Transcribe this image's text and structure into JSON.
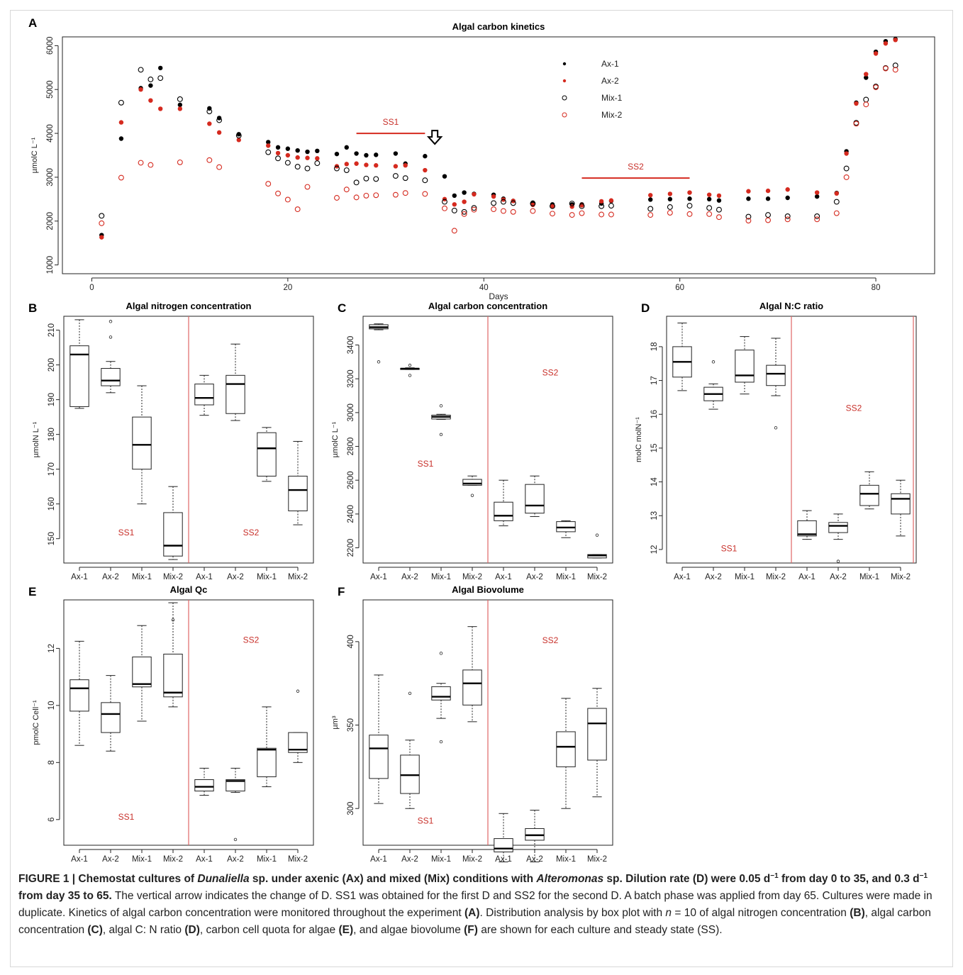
{
  "colors": {
    "black": "#000000",
    "red": "#d52a1f",
    "ss_text": "#c8302a",
    "divider": "#e06666"
  },
  "chart_data": [
    {
      "panel": "A",
      "type": "scatter",
      "title": "Algal carbon kinetics",
      "xlabel": "Days",
      "ylabel": "µmolC L⁻¹",
      "xlim": [
        -3,
        86
      ],
      "ylim": [
        800,
        6200
      ],
      "xticks": [
        0,
        20,
        40,
        60,
        80
      ],
      "yticks": [
        1000,
        2000,
        3000,
        4000,
        5000,
        6000
      ],
      "legend_position": "top-right",
      "annotations": [
        {
          "text": "SS1",
          "x_from": 27,
          "x_to": 34,
          "y": 4000
        },
        {
          "text": "SS2",
          "x_from": 50,
          "x_to": 61,
          "y": 2980
        },
        {
          "text": "arrow",
          "x": 35,
          "y": 4000
        }
      ],
      "x": [
        1,
        3,
        5,
        6,
        7,
        9,
        12,
        13,
        15,
        18,
        19,
        20,
        21,
        22,
        23,
        25,
        26,
        27,
        28,
        29,
        31,
        32,
        34,
        36,
        37,
        38,
        39,
        41,
        42,
        43,
        45,
        47,
        49,
        50,
        52,
        53,
        57,
        59,
        61,
        63,
        64,
        67,
        69,
        71,
        74,
        76,
        77,
        78,
        79,
        80,
        81,
        82
      ],
      "series": [
        {
          "name": "Ax-1",
          "marker": "filled",
          "color": "#000000",
          "values": [
            1680,
            3880,
            5030,
            5090,
            5490,
            4650,
            4570,
            4350,
            3980,
            3800,
            3680,
            3650,
            3610,
            3580,
            3600,
            3530,
            3680,
            3540,
            3500,
            3510,
            3540,
            3310,
            3480,
            3020,
            2580,
            2650,
            2620,
            2600,
            2510,
            2460,
            2420,
            2380,
            2380,
            2380,
            2400,
            2460,
            2490,
            2500,
            2510,
            2500,
            2470,
            2510,
            2510,
            2530,
            2560,
            2640,
            3590,
            4700,
            5270,
            5860,
            6100,
            6150
          ]
        },
        {
          "name": "Ax-2",
          "marker": "filled",
          "color": "#d52a1f",
          "values": [
            1630,
            4250,
            5000,
            4750,
            4560,
            4560,
            4220,
            4020,
            3850,
            3720,
            3550,
            3500,
            3450,
            3440,
            3430,
            3250,
            3300,
            3310,
            3280,
            3270,
            3250,
            3270,
            3160,
            2500,
            2380,
            2440,
            2610,
            2560,
            2490,
            2460,
            2370,
            2340,
            2330,
            2360,
            2450,
            2470,
            2590,
            2620,
            2650,
            2600,
            2580,
            2680,
            2690,
            2720,
            2650,
            2630,
            3540,
            4680,
            5350,
            5820,
            6050,
            6130
          ]
        },
        {
          "name": "Mix-1",
          "marker": "open",
          "color": "#000000",
          "values": [
            2120,
            4700,
            5450,
            5230,
            5260,
            4780,
            4500,
            4300,
            3950,
            3570,
            3430,
            3330,
            3240,
            3200,
            3320,
            3200,
            3160,
            2880,
            2970,
            2960,
            3030,
            2980,
            2930,
            2440,
            2240,
            2210,
            2300,
            2410,
            2440,
            2410,
            2400,
            2340,
            2400,
            2340,
            2340,
            2350,
            2280,
            2320,
            2350,
            2300,
            2260,
            2100,
            2140,
            2110,
            2110,
            2440,
            3200,
            4240,
            4770,
            5070,
            5490,
            5550
          ]
        },
        {
          "name": "Mix-2",
          "marker": "open",
          "color": "#d52a1f",
          "values": [
            1950,
            2990,
            3330,
            3280,
            null,
            3340,
            3390,
            3230,
            null,
            2850,
            2630,
            2490,
            2270,
            2780,
            null,
            2530,
            2720,
            2540,
            2580,
            2590,
            2600,
            2640,
            2620,
            2290,
            1780,
            2160,
            2260,
            2270,
            2230,
            2210,
            2230,
            2170,
            2140,
            2180,
            2150,
            2150,
            2140,
            2190,
            2160,
            2160,
            2090,
            2010,
            2020,
            2040,
            2040,
            2180,
            3000,
            4220,
            4660,
            5050,
            5480,
            5450
          ]
        }
      ]
    },
    {
      "panel": "B",
      "type": "boxplot",
      "title": "Algal nitrogen concentration",
      "ylabel": "µmolN L⁻¹",
      "ylim": [
        143,
        214
      ],
      "yticks": [
        150,
        160,
        170,
        180,
        190,
        200,
        210
      ],
      "categories": [
        "Ax-1",
        "Ax-2",
        "Mix-1",
        "Mix-2",
        "Ax-1",
        "Ax-2",
        "Mix-1",
        "Mix-2"
      ],
      "groups": [
        {
          "label": "SS1",
          "y": 151
        },
        {
          "label": "SS2",
          "y": 151
        }
      ],
      "boxes": [
        {
          "min": 187.5,
          "q1": 188,
          "median": 203,
          "q3": 205.5,
          "max": 213,
          "outliers": []
        },
        {
          "min": 192,
          "q1": 194,
          "median": 195.5,
          "q3": 199,
          "max": 201,
          "outliers": [
            208,
            212.5
          ]
        },
        {
          "min": 160,
          "q1": 170,
          "median": 177,
          "q3": 185,
          "max": 194,
          "outliers": []
        },
        {
          "min": 144,
          "q1": 145,
          "median": 148,
          "q3": 157.5,
          "max": 165,
          "outliers": []
        },
        {
          "min": 185.5,
          "q1": 188.5,
          "median": 190.5,
          "q3": 194.5,
          "max": 197,
          "outliers": []
        },
        {
          "min": 184,
          "q1": 186,
          "median": 194.5,
          "q3": 197,
          "max": 206,
          "outliers": []
        },
        {
          "min": 166.5,
          "q1": 168,
          "median": 176,
          "q3": 180.5,
          "max": 182,
          "outliers": []
        },
        {
          "min": 154,
          "q1": 158,
          "median": 164,
          "q3": 168,
          "max": 178,
          "outliers": []
        }
      ]
    },
    {
      "panel": "C",
      "type": "boxplot",
      "title": "Algal carbon concentration",
      "ylabel": "µmolC L⁻¹",
      "ylim": [
        2110,
        3570
      ],
      "yticks": [
        2200,
        2400,
        2600,
        2800,
        3000,
        3200,
        3400
      ],
      "categories": [
        "Ax-1",
        "Ax-2",
        "Mix-1",
        "Mix-2",
        "Ax-1",
        "Ax-2",
        "Mix-1",
        "Mix-2"
      ],
      "groups": [
        {
          "label": "SS1",
          "y": 2680
        },
        {
          "label": "SS2",
          "y": 3220
        }
      ],
      "boxes": [
        {
          "min": 3490,
          "q1": 3495,
          "median": 3505,
          "q3": 3520,
          "max": 3525,
          "outliers": [
            3300
          ]
        },
        {
          "min": 3255,
          "q1": 3255,
          "median": 3260,
          "q3": 3262,
          "max": 3265,
          "outliers": [
            3220,
            3280
          ]
        },
        {
          "min": 2960,
          "q1": 2962,
          "median": 2975,
          "q3": 2985,
          "max": 2990,
          "outliers": [
            2870,
            3040
          ]
        },
        {
          "min": 2570,
          "q1": 2570,
          "median": 2580,
          "q3": 2605,
          "max": 2625,
          "outliers": [
            2510
          ]
        },
        {
          "min": 2330,
          "q1": 2360,
          "median": 2390,
          "q3": 2470,
          "max": 2600,
          "outliers": []
        },
        {
          "min": 2385,
          "q1": 2405,
          "median": 2450,
          "q3": 2575,
          "max": 2625,
          "outliers": []
        },
        {
          "min": 2260,
          "q1": 2295,
          "median": 2320,
          "q3": 2355,
          "max": 2360,
          "outliers": []
        },
        {
          "min": 2140,
          "q1": 2140,
          "median": 2155,
          "q3": 2160,
          "max": 2160,
          "outliers": [
            2275
          ]
        }
      ]
    },
    {
      "panel": "D",
      "type": "boxplot",
      "title": "Algal N:C ratio",
      "ylabel": "molC molN⁻¹",
      "ylim": [
        11.6,
        18.9
      ],
      "yticks": [
        12,
        13,
        14,
        15,
        16,
        17,
        18
      ],
      "categories": [
        "Ax-1",
        "Ax-2",
        "Mix-1",
        "Mix-2",
        "Ax-1",
        "Ax-2",
        "Mix-1",
        "Mix-2"
      ],
      "groups": [
        {
          "label": "SS1",
          "y": 11.95
        },
        {
          "label": "SS2",
          "y": 16.1
        }
      ],
      "boxes": [
        {
          "min": 16.7,
          "q1": 17.1,
          "median": 17.55,
          "q3": 18.0,
          "max": 18.7,
          "outliers": []
        },
        {
          "min": 16.15,
          "q1": 16.4,
          "median": 16.6,
          "q3": 16.8,
          "max": 16.9,
          "outliers": [
            17.55
          ]
        },
        {
          "min": 16.6,
          "q1": 16.95,
          "median": 17.15,
          "q3": 17.9,
          "max": 18.3,
          "outliers": []
        },
        {
          "min": 16.55,
          "q1": 16.85,
          "median": 17.2,
          "q3": 17.45,
          "max": 18.25,
          "outliers": [
            15.6
          ]
        },
        {
          "min": 12.3,
          "q1": 12.4,
          "median": 12.45,
          "q3": 12.85,
          "max": 13.15,
          "outliers": []
        },
        {
          "min": 12.3,
          "q1": 12.5,
          "median": 12.7,
          "q3": 12.8,
          "max": 13.05,
          "outliers": [
            11.65
          ]
        },
        {
          "min": 13.2,
          "q1": 13.3,
          "median": 13.65,
          "q3": 13.9,
          "max": 14.3,
          "outliers": []
        },
        {
          "min": 12.4,
          "q1": 13.05,
          "median": 13.5,
          "q3": 13.65,
          "max": 14.05,
          "outliers": []
        }
      ]
    },
    {
      "panel": "E",
      "type": "boxplot",
      "title": "Algal Qc",
      "ylabel": "pmolC Cell⁻¹",
      "ylim": [
        5.1,
        13.7
      ],
      "yticks": [
        6,
        8,
        10,
        12
      ],
      "categories": [
        "Ax-1",
        "Ax-2",
        "Mix-1",
        "Mix-2",
        "Ax-1",
        "Ax-2",
        "Mix-1",
        "Mix-2"
      ],
      "groups": [
        {
          "label": "SS1",
          "y": 6
        },
        {
          "label": "SS2",
          "y": 12.2
        }
      ],
      "boxes": [
        {
          "min": 8.6,
          "q1": 9.8,
          "median": 10.6,
          "q3": 10.9,
          "max": 12.25,
          "outliers": []
        },
        {
          "min": 8.4,
          "q1": 9.05,
          "median": 9.7,
          "q3": 10.1,
          "max": 11.05,
          "outliers": []
        },
        {
          "min": 9.45,
          "q1": 10.65,
          "median": 10.75,
          "q3": 11.7,
          "max": 12.8,
          "outliers": []
        },
        {
          "min": 9.95,
          "q1": 10.3,
          "median": 10.45,
          "q3": 11.8,
          "max": 13.6,
          "outliers": [
            13.0
          ]
        },
        {
          "min": 6.85,
          "q1": 7.0,
          "median": 7.15,
          "q3": 7.4,
          "max": 7.8,
          "outliers": []
        },
        {
          "min": 6.95,
          "q1": 7.0,
          "median": 7.35,
          "q3": 7.4,
          "max": 7.8,
          "outliers": [
            5.3
          ]
        },
        {
          "min": 7.15,
          "q1": 7.5,
          "median": 8.45,
          "q3": 8.5,
          "max": 9.95,
          "outliers": []
        },
        {
          "min": 8.0,
          "q1": 8.35,
          "median": 8.45,
          "q3": 9.05,
          "max": 9.05,
          "outliers": [
            10.5
          ]
        }
      ]
    },
    {
      "panel": "F",
      "type": "boxplot",
      "title": "Algal Biovolume",
      "ylabel": "µm³",
      "ylim": [
        278,
        425
      ],
      "yticks": [
        300,
        350,
        400
      ],
      "categories": [
        "Ax-1",
        "Ax-2",
        "Mix-1",
        "Mix-2",
        "Ax-1",
        "Ax-2",
        "Mix-1",
        "Mix-2"
      ],
      "groups": [
        {
          "label": "SS1",
          "y": 291
        },
        {
          "label": "SS2",
          "y": 399
        }
      ],
      "boxes": [
        {
          "min": 303,
          "q1": 318,
          "median": 336,
          "q3": 344,
          "max": 380,
          "outliers": []
        },
        {
          "min": 300,
          "q1": 309,
          "median": 320,
          "q3": 332,
          "max": 341,
          "outliers": [
            369
          ]
        },
        {
          "min": 354,
          "q1": 365,
          "median": 367,
          "q3": 373,
          "max": 375,
          "outliers": [
            393,
            340
          ]
        },
        {
          "min": 352,
          "q1": 362,
          "median": 375,
          "q3": 383,
          "max": 409,
          "outliers": []
        },
        {
          "min": 268,
          "q1": 274,
          "median": 276,
          "q3": 282,
          "max": 297,
          "outliers": []
        },
        {
          "min": 268,
          "q1": 281,
          "median": 284,
          "q3": 288,
          "max": 299,
          "outliers": []
        },
        {
          "min": 300,
          "q1": 325,
          "median": 337,
          "q3": 346,
          "max": 366,
          "outliers": []
        },
        {
          "min": 307,
          "q1": 329,
          "median": 351,
          "q3": 360,
          "max": 372,
          "outliers": []
        }
      ]
    }
  ],
  "caption": {
    "bold_parts": [
      "FIGURE 1 | Chemostat cultures of ",
      "Dunaliella",
      " sp. under axenic (Ax) and mixed (Mix) conditions with ",
      "Alteromonas",
      " sp. Dilution rate (D) were 0.05 d",
      "−1",
      " from day 0 to 35, and 0.3 d",
      "−1",
      " from day 35 to 65."
    ],
    "plain": " The vertical arrow indicates the change of D. SS1 was obtained for the first D and SS2 for the second D. A batch phase was applied from day 65. Cultures were made in duplicate. Kinetics of algal carbon concentration were monitored throughout the experiment ",
    "refA": "(A)",
    "p2": ". Distribution analysis by box plot with ",
    "n": "n",
    "p3": " = 10 of algal nitrogen concentration ",
    "refB": "(B)",
    "p4": ", algal carbon concentration ",
    "refC": "(C)",
    "p5": ", algal C: N ratio ",
    "refD": "(D)",
    "p6": ", carbon cell quota for algae ",
    "refE": "(E)",
    "p7": ", and algae biovolume ",
    "refF": "(F)",
    "p8": " are shown for each culture and steady state (SS)."
  }
}
